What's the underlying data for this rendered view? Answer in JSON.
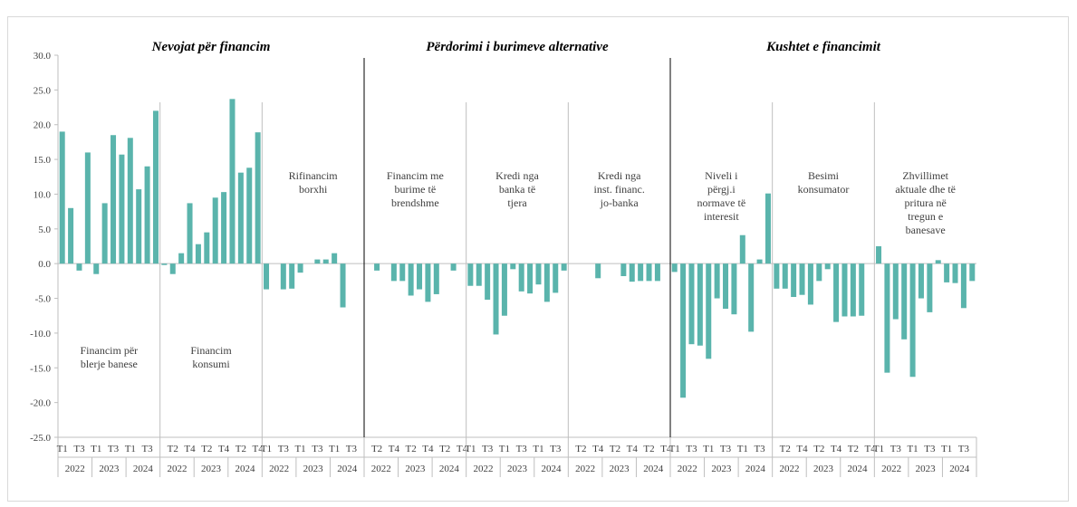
{
  "chart_data": {
    "type": "bar",
    "ylim": [
      -25,
      30
    ],
    "yticks": [
      "30.0",
      "25.0",
      "20.0",
      "15.0",
      "10.0",
      "5.0",
      "0.0",
      "-5.0",
      "-10.0",
      "-15.0",
      "-20.0",
      "-25.0"
    ],
    "colors": {
      "bar": "#5ab4ac",
      "axis": "#bfbfbf",
      "divider": "#000000"
    },
    "groups": [
      {
        "title": "Nevojat për financim"
      },
      {
        "title": "Përdorimi i burimeve alternative"
      },
      {
        "title": "Kushtet e financimit"
      }
    ],
    "quarter_labels": [
      "T1",
      "T2",
      "T3",
      "T4",
      "T1",
      "T2",
      "T3",
      "T4",
      "T1",
      "T2",
      "T3",
      "T4"
    ],
    "year_labels": [
      "2022",
      "2023",
      "2024"
    ],
    "panels": [
      {
        "label": "Financim për\nblerje banese",
        "label_pos": "low",
        "tick_set": "odd",
        "values": [
          19.0,
          8.0,
          -1.0,
          16.0,
          -1.5,
          8.7,
          18.5,
          15.7,
          18.1,
          10.7,
          14.0,
          22.0
        ]
      },
      {
        "label": "Financim\nkonsumi",
        "label_pos": "low",
        "tick_set": "even",
        "values": [
          -0.2,
          -1.5,
          1.5,
          8.7,
          2.8,
          4.5,
          9.5,
          10.3,
          23.7,
          13.1,
          13.8,
          18.9
        ]
      },
      {
        "label": "Rifinancim\nborxhi",
        "label_pos": "high",
        "tick_set": "odd",
        "values": [
          -3.7,
          0,
          -3.7,
          -3.6,
          -1.3,
          0,
          0.6,
          0.6,
          1.5,
          -6.3,
          0,
          0
        ]
      },
      {
        "label": "Financim me\nburime të\nbrendshme",
        "label_pos": "high",
        "tick_set": "even",
        "values": [
          0,
          -1.0,
          0,
          -2.5,
          -2.5,
          -4.6,
          -3.7,
          -5.5,
          -4.4,
          0,
          -1.0,
          0
        ]
      },
      {
        "label": "Kredi nga\nbanka të\ntjera",
        "label_pos": "high",
        "tick_set": "odd",
        "values": [
          -3.2,
          -3.2,
          -5.2,
          -10.2,
          -7.5,
          -0.8,
          -4.0,
          -4.3,
          -3.0,
          -5.5,
          -4.2,
          -1.0
        ]
      },
      {
        "label": "Kredi nga\ninst. financ.\njo-banka",
        "label_pos": "high",
        "tick_set": "even",
        "values": [
          0,
          0,
          0,
          -2.1,
          0,
          0,
          -1.8,
          -2.6,
          -2.5,
          -2.5,
          -2.5,
          0
        ]
      },
      {
        "label": "Niveli i\npërgj.i\nnormave të\ninteresit",
        "label_pos": "high",
        "tick_set": "odd",
        "values": [
          -1.2,
          -19.3,
          -11.6,
          -11.8,
          -13.7,
          -5.0,
          -6.5,
          -7.3,
          4.1,
          -9.8,
          0.6,
          10.1
        ]
      },
      {
        "label": "Besimi\nkonsumator",
        "label_pos": "high",
        "tick_set": "even",
        "values": [
          -3.6,
          -3.6,
          -4.8,
          -4.5,
          -5.9,
          -2.5,
          -0.8,
          -8.4,
          -7.6,
          -7.6,
          -7.5,
          0
        ]
      },
      {
        "label": "Zhvillimet\naktuale dhe të\npritura në\ntregun e\nbanesave",
        "label_pos": "high",
        "tick_set": "odd",
        "values": [
          2.5,
          -15.7,
          -8.0,
          -10.9,
          -16.3,
          -5.0,
          -7.0,
          0.5,
          -2.7,
          -2.8,
          -6.4,
          -2.5
        ]
      }
    ]
  }
}
